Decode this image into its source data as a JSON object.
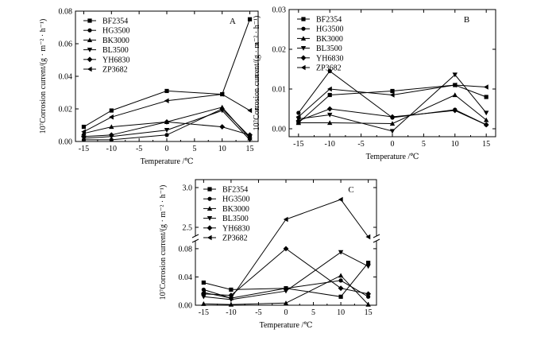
{
  "chart_data": [
    {
      "panel_label": "A",
      "type": "line",
      "x": [
        -15,
        -10,
        0,
        10,
        15
      ],
      "xlabel": "Temperature /℃",
      "ylabel": "10⁷Corrosion current/(g · m⁻² · h⁻¹)",
      "xlim": [
        -16.5,
        16.5
      ],
      "ylim": [
        0,
        0.08
      ],
      "x_ticks": [
        -15,
        -10,
        -5,
        0,
        5,
        10,
        15
      ],
      "y_ticks": [
        0.0,
        0.02,
        0.04,
        0.06,
        0.08
      ],
      "y_tick_labels": [
        "0.00",
        "0.02",
        "0.04",
        "0.06",
        "0.08"
      ],
      "legend_position": "top-left",
      "grid": false,
      "series": [
        {
          "name": "BF2354",
          "marker": "square",
          "values": [
            0.009,
            0.019,
            0.031,
            0.029,
            0.075
          ]
        },
        {
          "name": "HG3500",
          "marker": "circle",
          "values": [
            0.001,
            0.001,
            0.004,
            0.02,
            0.003
          ]
        },
        {
          "name": "BK3000",
          "marker": "triangle-up",
          "values": [
            0.005,
            0.009,
            0.012,
            0.021,
            0.002
          ]
        },
        {
          "name": "BL3500",
          "marker": "triangle-down",
          "values": [
            0.002,
            0.003,
            0.007,
            0.019,
            0.001
          ]
        },
        {
          "name": "YH6830",
          "marker": "diamond",
          "values": [
            0.003,
            0.004,
            0.012,
            0.009,
            0.004
          ]
        },
        {
          "name": "ZP3682",
          "marker": "triangle-left",
          "values": [
            0.006,
            0.015,
            0.025,
            0.029,
            0.019
          ]
        }
      ]
    },
    {
      "panel_label": "B",
      "type": "line",
      "x": [
        -15,
        -10,
        0,
        10,
        15
      ],
      "xlabel": "Temperature /℃",
      "ylabel": "10⁷Corrosion current/(g · m⁻² · h⁻¹)",
      "xlim": [
        -16.5,
        16.5
      ],
      "ylim": [
        -0.002,
        0.03
      ],
      "x_ticks": [
        -15,
        -10,
        -5,
        0,
        5,
        10,
        15
      ],
      "y_ticks": [
        0.0,
        0.01,
        0.02,
        0.03
      ],
      "y_tick_labels": [
        "0.00",
        "0.01",
        "0.02",
        "0.03"
      ],
      "legend_position": "top-left",
      "grid": false,
      "series": [
        {
          "name": "BF2354",
          "marker": "square",
          "values": [
            0.0015,
            0.0085,
            0.0095,
            0.011,
            0.008
          ]
        },
        {
          "name": "HG3500",
          "marker": "circle",
          "values": [
            0.004,
            0.0145,
            0.0028,
            0.0048,
            0.001
          ]
        },
        {
          "name": "BK3000",
          "marker": "triangle-up",
          "values": [
            0.0015,
            0.0015,
            0.0013,
            0.0085,
            0.0022
          ]
        },
        {
          "name": "BL3500",
          "marker": "triangle-down",
          "values": [
            0.0025,
            0.0035,
            -0.0006,
            0.0136,
            0.004
          ]
        },
        {
          "name": "YH6830",
          "marker": "diamond",
          "values": [
            0.002,
            0.005,
            0.003,
            0.0046,
            0.001
          ]
        },
        {
          "name": "ZP3682",
          "marker": "triangle-left",
          "values": [
            0.003,
            0.01,
            0.0085,
            0.011,
            0.0105
          ]
        }
      ]
    },
    {
      "panel_label": "C",
      "type": "line",
      "x": [
        -15,
        -10,
        0,
        10,
        15
      ],
      "xlabel": "Temperature /℃",
      "ylabel": "10⁷Corrosion current/(g · m⁻² · h⁻¹)",
      "xlim": [
        -16.5,
        16.5
      ],
      "y_axis_break": {
        "lower_range": [
          0,
          0.09
        ],
        "upper_range": [
          2.4,
          3.1
        ]
      },
      "x_ticks": [
        -15,
        -10,
        -5,
        0,
        5,
        10,
        15
      ],
      "y_ticks_lower": [
        0.0,
        0.04,
        0.08
      ],
      "y_tick_labels_lower": [
        "0.00",
        "0.04",
        "0.08"
      ],
      "y_ticks_upper": [
        2.5,
        3.0
      ],
      "y_tick_labels_upper": [
        "2.5",
        "3.0"
      ],
      "legend_position": "top-left",
      "grid": false,
      "series": [
        {
          "name": "BF2354",
          "marker": "square",
          "values": [
            0.032,
            0.022,
            0.024,
            0.012,
            0.06
          ]
        },
        {
          "name": "HG3500",
          "marker": "circle",
          "values": [
            0.022,
            0.01,
            0.024,
            0.035,
            0.012
          ]
        },
        {
          "name": "BK3000",
          "marker": "triangle-up",
          "values": [
            0.002,
            0.001,
            0.003,
            0.042,
            0.001
          ]
        },
        {
          "name": "BL3500",
          "marker": "triangle-down",
          "values": [
            0.012,
            0.008,
            0.02,
            0.075,
            0.055
          ]
        },
        {
          "name": "YH6830",
          "marker": "diamond",
          "values": [
            0.016,
            0.014,
            0.08,
            0.024,
            0.016
          ]
        },
        {
          "name": "ZP3682",
          "marker": "triangle-left",
          "values": [
            0.018,
            0.01,
            2.6,
            2.85,
            2.38
          ]
        }
      ]
    }
  ]
}
